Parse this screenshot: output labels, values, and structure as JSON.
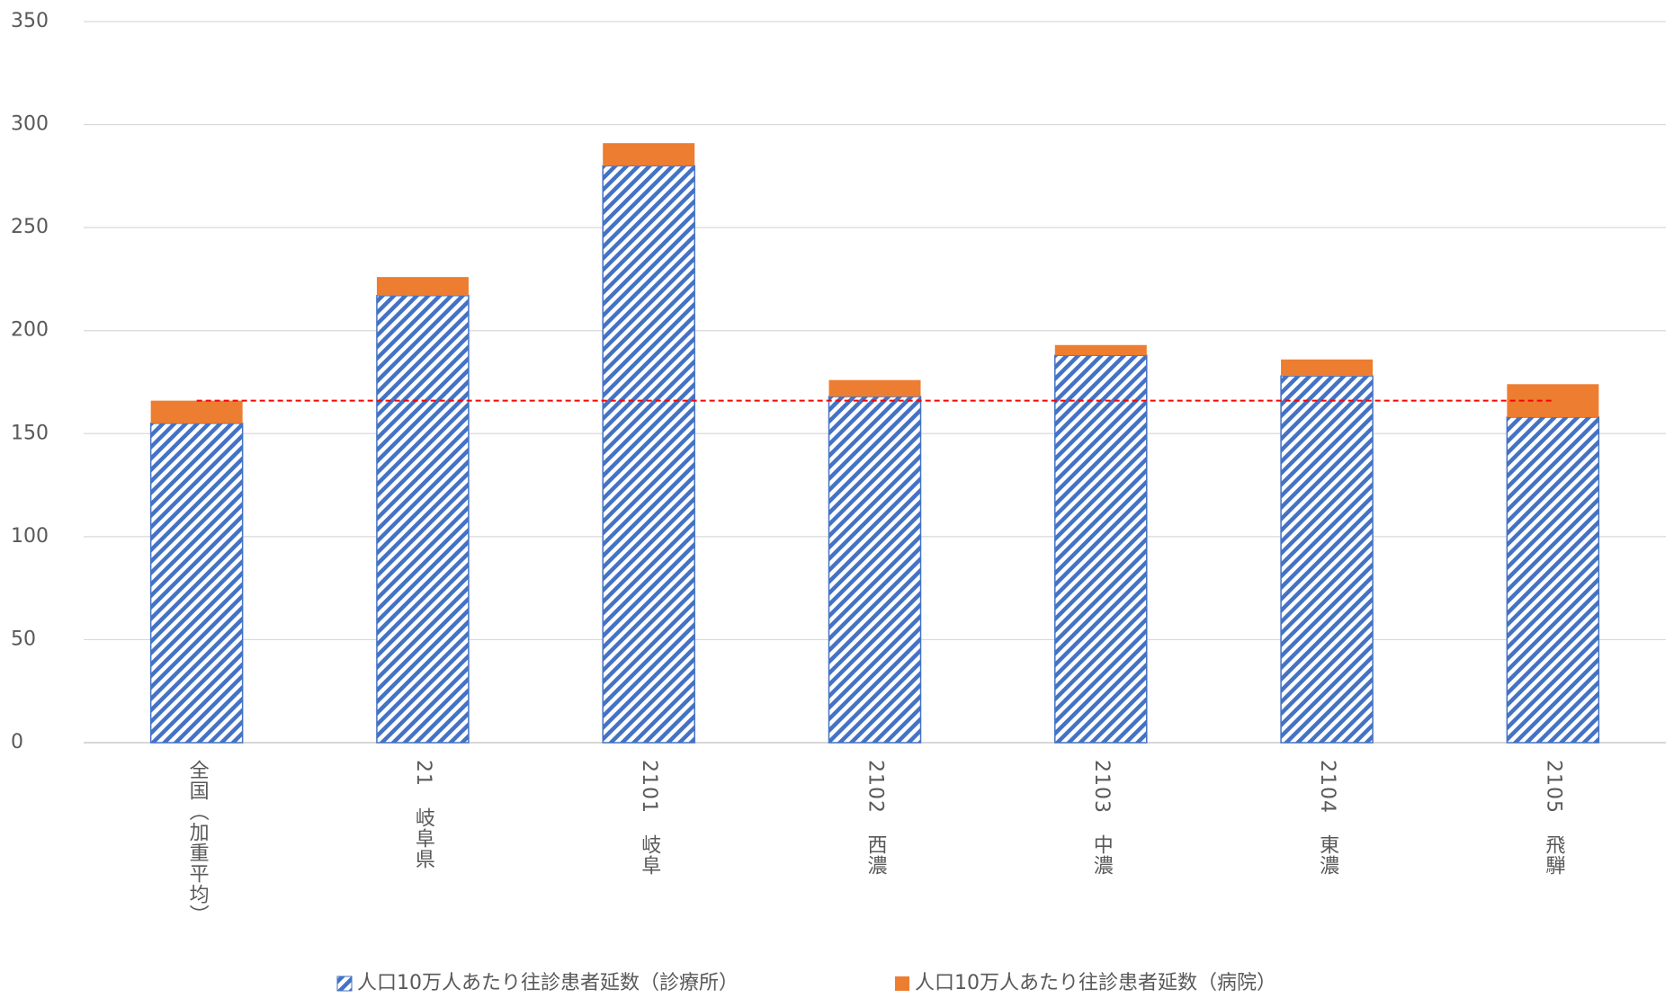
{
  "chart_data": {
    "type": "stacked_bar",
    "categories": [
      "全国（加重平均）",
      "21　岐阜県",
      "2101　岐阜",
      "2102　西濃",
      "2103　中濃",
      "2104　東濃",
      "2105　飛騨"
    ],
    "series": [
      {
        "name": "人口10万人あたり往診患者延数（診療所）",
        "color": "#4472c4",
        "pattern": "hatch",
        "values": [
          155,
          217,
          280,
          168,
          188,
          178,
          158
        ]
      },
      {
        "name": "人口10万人あたり往診患者延数（病院）",
        "color": "#ed7d31",
        "values": [
          11,
          9,
          11,
          8,
          5,
          8,
          16
        ]
      }
    ],
    "reference_line": {
      "value": 166,
      "color": "#ff0000"
    },
    "ylim": [
      0,
      350
    ],
    "yticks": [
      0,
      50,
      100,
      150,
      200,
      250,
      300,
      350
    ],
    "grid": true,
    "legend": "bottom"
  }
}
